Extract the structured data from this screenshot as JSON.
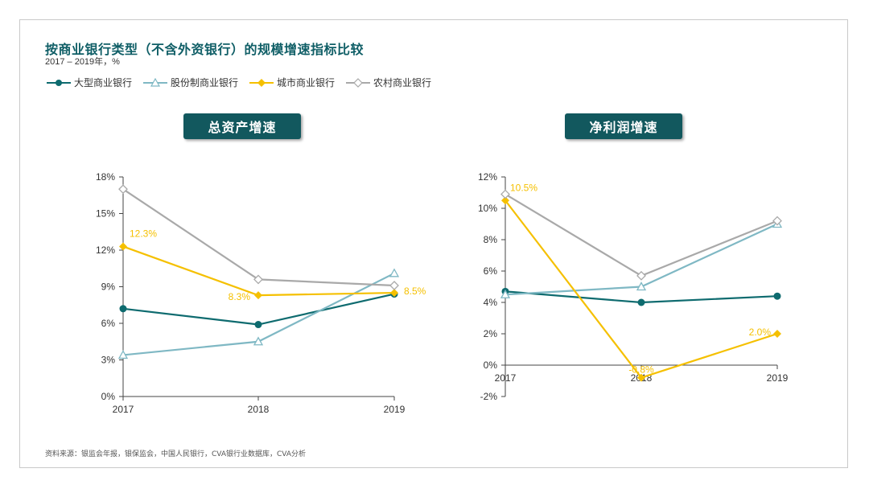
{
  "header": {
    "title": "按商业银行类型（不含外资银行）的规模增速指标比较",
    "subtitle": "2017 – 2019年，%"
  },
  "legend": [
    {
      "label": "大型商业银行",
      "color": "#0e6b6f",
      "marker": "circle"
    },
    {
      "label": "股份制商业银行",
      "color": "#7fb8c4",
      "marker": "triangle"
    },
    {
      "label": "城市商业银行",
      "color": "#f5c000",
      "marker": "diamond"
    },
    {
      "label": "农村商业银行",
      "color": "#a9a9a9",
      "marker": "diamond-open"
    }
  ],
  "panels": {
    "left_title": "总资产增速",
    "right_title": "净利润增速"
  },
  "source": "资料来源：银监会年报，银保监会，中国人民银行，CVA银行业数据库，CVA分析",
  "chart_data": [
    {
      "type": "line",
      "title": "总资产增速",
      "categories": [
        "2017",
        "2018",
        "2019"
      ],
      "ylim": [
        0,
        18
      ],
      "yticks": [
        0,
        3,
        6,
        9,
        12,
        15,
        18
      ],
      "ytick_labels": [
        "0%",
        "3%",
        "6%",
        "9%",
        "12%",
        "15%",
        "18%"
      ],
      "series": [
        {
          "name": "大型商业银行",
          "values": [
            7.2,
            5.9,
            8.4
          ],
          "color": "#0e6b6f",
          "marker": "circle"
        },
        {
          "name": "股份制商业银行",
          "values": [
            3.4,
            4.5,
            10.1
          ],
          "color": "#7fb8c4",
          "marker": "triangle"
        },
        {
          "name": "城市商业银行",
          "values": [
            12.3,
            8.3,
            8.5
          ],
          "color": "#f5c000",
          "marker": "diamond",
          "labels": [
            "12.3%",
            "8.3%",
            "8.5%"
          ]
        },
        {
          "name": "农村商业银行",
          "values": [
            17.0,
            9.6,
            9.1
          ],
          "color": "#a9a9a9",
          "marker": "diamond-open"
        }
      ]
    },
    {
      "type": "line",
      "title": "净利润增速",
      "categories": [
        "2017",
        "2018",
        "2019"
      ],
      "ylim": [
        -2,
        12
      ],
      "yticks": [
        -2,
        0,
        2,
        4,
        6,
        8,
        10,
        12
      ],
      "ytick_labels": [
        "-2%",
        "0%",
        "2%",
        "4%",
        "6%",
        "8%",
        "10%",
        "12%"
      ],
      "series": [
        {
          "name": "大型商业银行",
          "values": [
            4.7,
            4.0,
            4.4
          ],
          "color": "#0e6b6f",
          "marker": "circle"
        },
        {
          "name": "股份制商业银行",
          "values": [
            4.5,
            5.0,
            9.0
          ],
          "color": "#7fb8c4",
          "marker": "triangle"
        },
        {
          "name": "城市商业银行",
          "values": [
            10.5,
            -0.8,
            2.0
          ],
          "color": "#f5c000",
          "marker": "diamond",
          "labels": [
            "10.5%",
            "-0.8%",
            "2.0%"
          ]
        },
        {
          "name": "农村商业银行",
          "values": [
            10.9,
            5.7,
            9.2
          ],
          "color": "#a9a9a9",
          "marker": "diamond-open"
        }
      ]
    }
  ]
}
